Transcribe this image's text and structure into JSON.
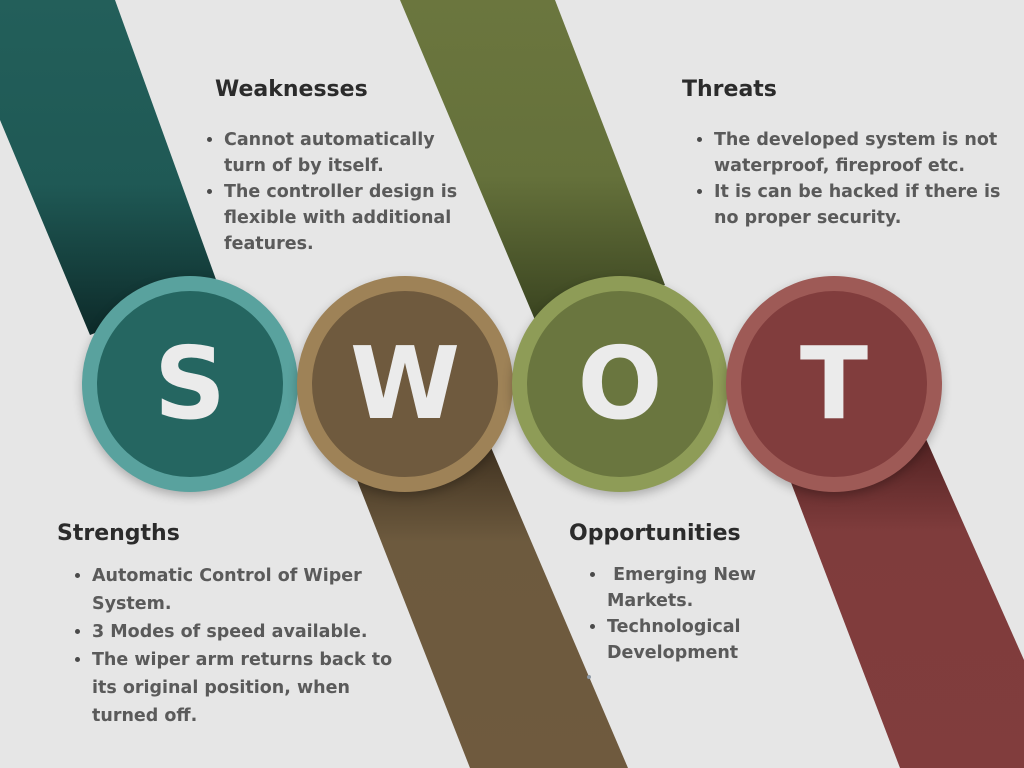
{
  "colors": {
    "background": "#e6e6e6",
    "strengths": "#256661",
    "weaknesses": "#6f5a3e",
    "opportunities": "#6a763f",
    "threats": "#813d3d"
  },
  "circles": {
    "s": {
      "letter": "S"
    },
    "w": {
      "letter": "W"
    },
    "o": {
      "letter": "O"
    },
    "t": {
      "letter": "T"
    }
  },
  "strengths": {
    "title": "Strengths",
    "items": [
      "Automatic Control of Wiper System.",
      "3 Modes of speed available.",
      "The wiper arm returns back to its original position, when turned off."
    ]
  },
  "weaknesses": {
    "title": "Weaknesses",
    "items": [
      "Cannot automatically turn of by itself.",
      "The controller design is flexible with additional features."
    ]
  },
  "opportunities": {
    "title": "Opportunities",
    "items": [
      " Emerging New Markets.",
      "Technological Development"
    ]
  },
  "threats": {
    "title": "Threats",
    "items": [
      "The developed system is not waterproof, fireproof etc.",
      "It is can be hacked if there is no proper security."
    ]
  }
}
